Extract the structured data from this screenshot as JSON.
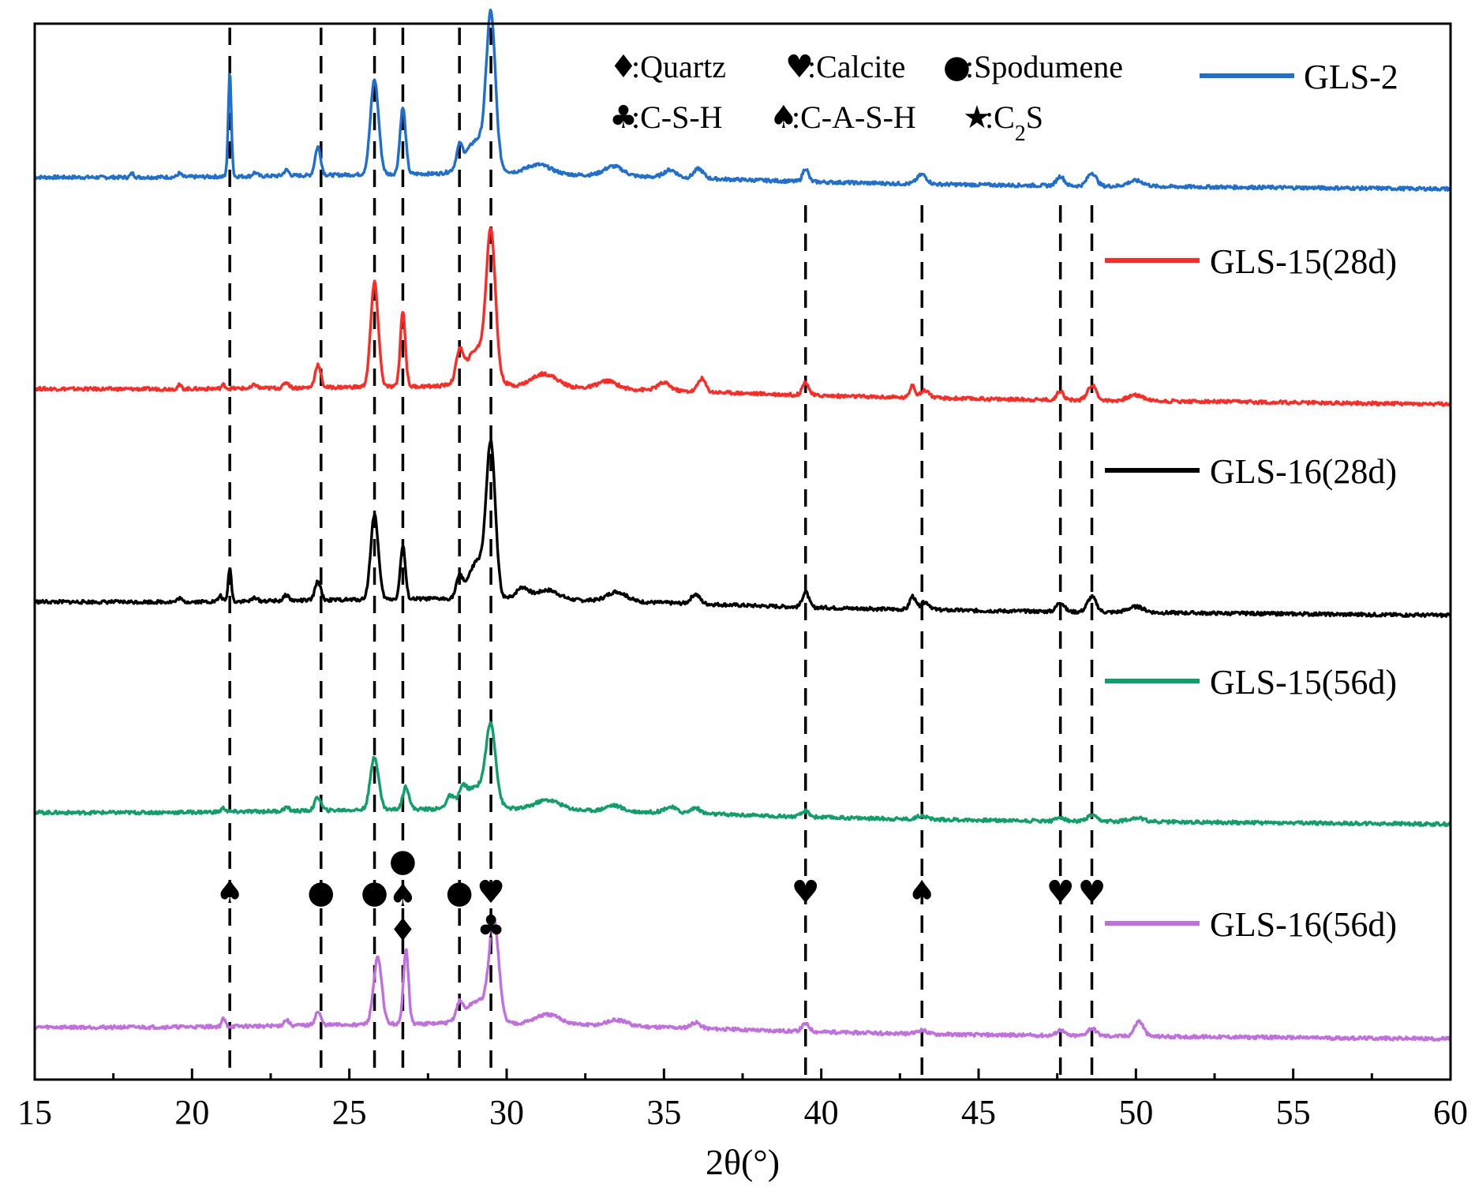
{
  "chart_data": {
    "type": "line",
    "title": "",
    "xlabel": "2θ(°)",
    "ylabel": "",
    "xlim": [
      15,
      60
    ],
    "xticks": [
      15,
      20,
      25,
      30,
      35,
      40,
      45,
      50,
      55,
      60
    ],
    "grid": false,
    "legend_position": "right",
    "series": [
      {
        "name": "GLS-2",
        "color": "#1f6fd1",
        "baseline_start": 0.9,
        "baseline_end": 0.84,
        "peaks": [
          [
            18.1,
            0.02,
            0.06
          ],
          [
            19.6,
            0.02,
            0.06
          ],
          [
            21.2,
            0.55,
            0.05
          ],
          [
            22.0,
            0.02,
            0.07
          ],
          [
            23.0,
            0.03,
            0.08
          ],
          [
            24.0,
            0.15,
            0.09
          ],
          [
            25.8,
            0.5,
            0.13
          ],
          [
            26.7,
            0.35,
            0.09
          ],
          [
            28.5,
            0.1,
            0.09
          ],
          [
            29.5,
            0.75,
            0.14
          ],
          [
            29.1,
            0.18,
            0.4
          ],
          [
            31.0,
            0.05,
            0.4
          ],
          [
            33.4,
            0.05,
            0.3
          ],
          [
            35.2,
            0.04,
            0.2
          ],
          [
            36.1,
            0.05,
            0.15
          ],
          [
            39.5,
            0.07,
            0.09
          ],
          [
            43.2,
            0.05,
            0.15
          ],
          [
            47.6,
            0.05,
            0.12
          ],
          [
            48.6,
            0.07,
            0.14
          ],
          [
            50.0,
            0.03,
            0.25
          ]
        ]
      },
      {
        "name": "GLS-15(28d)",
        "color": "#ff2a23",
        "baseline_start": 0.9,
        "baseline_end": 0.82,
        "peaks": [
          [
            19.6,
            0.02,
            0.06
          ],
          [
            21.0,
            0.02,
            0.06
          ],
          [
            22.0,
            0.02,
            0.07
          ],
          [
            23.0,
            0.03,
            0.08
          ],
          [
            24.0,
            0.12,
            0.09
          ],
          [
            25.8,
            0.55,
            0.12
          ],
          [
            26.7,
            0.4,
            0.08
          ],
          [
            28.5,
            0.14,
            0.1
          ],
          [
            29.5,
            0.72,
            0.14
          ],
          [
            29.1,
            0.2,
            0.4
          ],
          [
            31.2,
            0.07,
            0.4
          ],
          [
            33.2,
            0.04,
            0.3
          ],
          [
            35.0,
            0.04,
            0.2
          ],
          [
            36.2,
            0.07,
            0.12
          ],
          [
            39.5,
            0.07,
            0.1
          ],
          [
            42.9,
            0.07,
            0.08
          ],
          [
            43.3,
            0.04,
            0.14
          ],
          [
            47.6,
            0.05,
            0.1
          ],
          [
            48.6,
            0.08,
            0.14
          ],
          [
            50.0,
            0.03,
            0.25
          ]
        ]
      },
      {
        "name": "GLS-16(28d)",
        "color": "#000000",
        "baseline_start": 0.9,
        "baseline_end": 0.83,
        "peaks": [
          [
            19.6,
            0.02,
            0.06
          ],
          [
            20.9,
            0.03,
            0.06
          ],
          [
            21.2,
            0.18,
            0.05
          ],
          [
            22.0,
            0.02,
            0.07
          ],
          [
            23.0,
            0.03,
            0.08
          ],
          [
            24.0,
            0.1,
            0.09
          ],
          [
            25.8,
            0.45,
            0.12
          ],
          [
            26.7,
            0.28,
            0.08
          ],
          [
            28.5,
            0.1,
            0.1
          ],
          [
            29.5,
            0.75,
            0.14
          ],
          [
            29.1,
            0.2,
            0.3
          ],
          [
            30.5,
            0.06,
            0.2
          ],
          [
            31.3,
            0.05,
            0.35
          ],
          [
            33.5,
            0.05,
            0.3
          ],
          [
            36.0,
            0.05,
            0.14
          ],
          [
            39.5,
            0.08,
            0.1
          ],
          [
            42.9,
            0.07,
            0.09
          ],
          [
            43.3,
            0.04,
            0.15
          ],
          [
            47.6,
            0.05,
            0.12
          ],
          [
            48.6,
            0.08,
            0.14
          ],
          [
            50.0,
            0.03,
            0.25
          ]
        ]
      },
      {
        "name": "GLS-15(56d)",
        "color": "#0ea068",
        "baseline_start": 0.9,
        "baseline_end": 0.84,
        "peaks": [
          [
            21.0,
            0.02,
            0.07
          ],
          [
            23.0,
            0.02,
            0.08
          ],
          [
            24.0,
            0.07,
            0.1
          ],
          [
            25.8,
            0.28,
            0.13
          ],
          [
            26.8,
            0.12,
            0.1
          ],
          [
            28.2,
            0.06,
            0.12
          ],
          [
            28.6,
            0.07,
            0.12
          ],
          [
            29.5,
            0.38,
            0.15
          ],
          [
            29.1,
            0.12,
            0.4
          ],
          [
            31.3,
            0.05,
            0.4
          ],
          [
            33.4,
            0.03,
            0.25
          ],
          [
            35.2,
            0.03,
            0.2
          ],
          [
            36.0,
            0.03,
            0.15
          ],
          [
            39.5,
            0.03,
            0.12
          ],
          [
            43.2,
            0.02,
            0.15
          ],
          [
            47.6,
            0.02,
            0.12
          ],
          [
            48.6,
            0.03,
            0.14
          ],
          [
            50.0,
            0.02,
            0.25
          ]
        ]
      },
      {
        "name": "GLS-16(56d)",
        "color": "#c16fe0",
        "baseline_start": 0.9,
        "baseline_end": 0.84,
        "peaks": [
          [
            21.0,
            0.04,
            0.06
          ],
          [
            23.0,
            0.03,
            0.08
          ],
          [
            24.0,
            0.07,
            0.09
          ],
          [
            25.9,
            0.35,
            0.13
          ],
          [
            26.8,
            0.4,
            0.08
          ],
          [
            28.5,
            0.08,
            0.1
          ],
          [
            29.6,
            0.5,
            0.15
          ],
          [
            29.1,
            0.12,
            0.4
          ],
          [
            31.3,
            0.05,
            0.4
          ],
          [
            33.5,
            0.03,
            0.3
          ],
          [
            36.0,
            0.03,
            0.15
          ],
          [
            39.5,
            0.04,
            0.12
          ],
          [
            43.2,
            0.02,
            0.15
          ],
          [
            47.6,
            0.03,
            0.12
          ],
          [
            48.6,
            0.04,
            0.14
          ],
          [
            50.1,
            0.08,
            0.14
          ]
        ]
      }
    ],
    "phase_legend": [
      {
        "symbol": "♦",
        "label": ":Quartz"
      },
      {
        "symbol": "♥",
        "label": ":Calcite"
      },
      {
        "symbol": "●",
        "label": ":Spodumene"
      },
      {
        "symbol": "♣",
        "label": ":C-S-H"
      },
      {
        "symbol": "♠",
        "label": ":C-A-S-H"
      },
      {
        "symbol": "★",
        "label": ":C",
        "sub": "2",
        "tail": "S"
      }
    ],
    "reference_lines_2theta": [
      21.2,
      24.1,
      25.8,
      26.7,
      28.5,
      29.5,
      39.5,
      43.2,
      47.6,
      48.6
    ],
    "peak_markers": [
      {
        "x": 21.2,
        "symbols": [
          "♠"
        ]
      },
      {
        "x": 24.1,
        "symbols": [
          "●"
        ]
      },
      {
        "x": 25.8,
        "symbols": [
          "●"
        ]
      },
      {
        "x": 26.7,
        "symbols": [
          "●",
          "♠",
          "♦"
        ]
      },
      {
        "x": 28.5,
        "symbols": [
          "●"
        ]
      },
      {
        "x": 29.5,
        "symbols": [
          "♥",
          "♣"
        ]
      },
      {
        "x": 39.5,
        "symbols": [
          "♥"
        ]
      },
      {
        "x": 43.2,
        "symbols": [
          "♠"
        ]
      },
      {
        "x": 47.6,
        "symbols": [
          "♥"
        ]
      },
      {
        "x": 48.6,
        "symbols": [
          "♥"
        ]
      }
    ]
  }
}
